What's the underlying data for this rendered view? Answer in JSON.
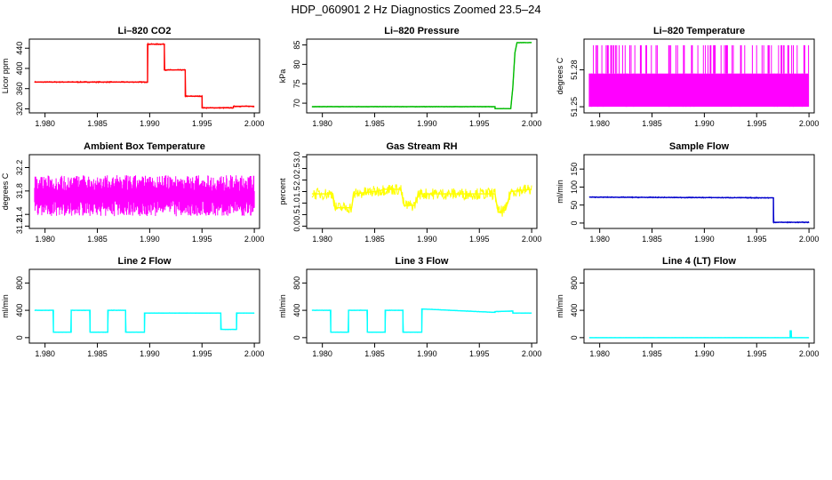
{
  "figure_title": "HDP_060901  2 Hz Diagnostics Zoomed 23.5–24",
  "chart_data": [
    {
      "type": "line",
      "title": "Li–820 CO2",
      "ylabel": "Licor ppm",
      "color": "#ff0000",
      "xlim": [
        1.9785,
        2.0005
      ],
      "ylim": [
        312,
        458
      ],
      "xticks": [
        "1.980",
        "1.985",
        "1.990",
        "1.995",
        "2.000"
      ],
      "yticks": [
        {
          "value": 320,
          "label": "320"
        },
        {
          "value": 360,
          "label": "360"
        },
        {
          "value": 400,
          "label": "400"
        },
        {
          "value": 440,
          "label": "440"
        }
      ],
      "noise": 1.2,
      "series": [
        {
          "x": [
            1.979,
            1.9898,
            1.9898,
            1.9914,
            1.9914,
            1.9934,
            1.9934,
            1.995,
            1.995,
            1.998,
            1.998,
            2.0
          ],
          "values": [
            373,
            373,
            448,
            448,
            397,
            397,
            345,
            345,
            322,
            322,
            325,
            325
          ]
        }
      ]
    },
    {
      "type": "line",
      "title": "Li–820 Pressure",
      "ylabel": "kPa",
      "color": "#00bb00",
      "xlim": [
        1.9785,
        2.0005
      ],
      "ylim": [
        67.5,
        86.5
      ],
      "xticks": [
        "1.980",
        "1.985",
        "1.990",
        "1.995",
        "2.000"
      ],
      "yticks": [
        {
          "value": 70,
          "label": "70"
        },
        {
          "value": 75,
          "label": "75"
        },
        {
          "value": 80,
          "label": "80"
        },
        {
          "value": 85,
          "label": "85"
        }
      ],
      "noise": 0.08,
      "series": [
        {
          "x": [
            1.979,
            1.9965,
            1.9965,
            1.998,
            1.9982,
            1.9984,
            1.9986,
            2.0
          ],
          "values": [
            69.1,
            69.1,
            68.6,
            68.6,
            74,
            83,
            85.6,
            85.6
          ]
        }
      ]
    },
    {
      "type": "noise",
      "title": "Li–820 Temperature",
      "ylabel": "degrees C",
      "color": "#ff00ff",
      "xlim": [
        1.9785,
        2.0005
      ],
      "ylim": [
        51.245,
        51.305
      ],
      "xticks": [
        "1.980",
        "1.985",
        "1.990",
        "1.995",
        "2.000"
      ],
      "yticks": [
        {
          "value": 51.25,
          "label": "51.25"
        },
        {
          "value": 51.28,
          "label": "51.28"
        }
      ],
      "series": [
        {
          "x": [
            1.979,
            2.0
          ],
          "base": 51.25,
          "level": 51.277,
          "spikes": 51.3
        }
      ]
    },
    {
      "type": "noise",
      "title": "Ambient Box Temperature",
      "ylabel": "degrees C",
      "color": "#ff00ff",
      "xlim": [
        1.9785,
        2.0005
      ],
      "ylim": [
        31.16,
        32.42
      ],
      "xticks": [
        "1.980",
        "1.985",
        "1.990",
        "1.995",
        "2.000"
      ],
      "yticks": [
        {
          "value": 31.2,
          "label": "31.2"
        },
        {
          "value": 31.4,
          "label": "31.4"
        },
        {
          "value": 31.8,
          "label": "31.8"
        },
        {
          "value": 32.2,
          "label": "32.2"
        }
      ],
      "series": [
        {
          "x": [
            1.979,
            2.0
          ],
          "mean": 31.72,
          "spread": 0.35
        }
      ]
    },
    {
      "type": "line",
      "title": "Gas Stream RH",
      "ylabel": "percent",
      "color": "#ffff00",
      "xlim": [
        1.9785,
        2.0005
      ],
      "ylim": [
        -0.1,
        3.1
      ],
      "xticks": [
        "1.980",
        "1.985",
        "1.990",
        "1.995",
        "2.000"
      ],
      "yticks": [
        {
          "value": 0.0,
          "label": "0.0"
        },
        {
          "value": 0.5,
          "label": "0.5"
        },
        {
          "value": 1.0,
          "label": "1.0"
        },
        {
          "value": 1.5,
          "label": "1.5"
        },
        {
          "value": 2.0,
          "label": "2.0"
        },
        {
          "value": 2.5,
          "label": "2.5"
        },
        {
          "value": 3.0,
          "label": "3.0"
        }
      ],
      "noise": 0.25,
      "series": [
        {
          "x": [
            1.979,
            1.981,
            1.9812,
            1.9828,
            1.983,
            1.985,
            1.986,
            1.9875,
            1.9878,
            1.9888,
            1.9892,
            1.9965,
            1.9968,
            1.9975,
            1.998,
            2.0
          ],
          "values": [
            1.4,
            1.4,
            0.8,
            0.8,
            1.4,
            1.5,
            1.6,
            1.6,
            0.9,
            0.9,
            1.4,
            1.4,
            0.6,
            0.7,
            1.5,
            1.6
          ]
        }
      ]
    },
    {
      "type": "line",
      "title": "Sample Flow",
      "ylabel": "ml/min",
      "color": "#0000cc",
      "xlim": [
        1.9785,
        2.0005
      ],
      "ylim": [
        -15,
        190
      ],
      "xticks": [
        "1.980",
        "1.985",
        "1.990",
        "1.995",
        "2.000"
      ],
      "yticks": [
        {
          "value": 0,
          "label": "0"
        },
        {
          "value": 50,
          "label": "50"
        },
        {
          "value": 100,
          "label": "100"
        },
        {
          "value": 150,
          "label": "150"
        }
      ],
      "noise": 1.5,
      "series": [
        {
          "x": [
            1.979,
            1.9966,
            1.9966,
            2.0
          ],
          "values": [
            72,
            70,
            2,
            2
          ]
        }
      ]
    },
    {
      "type": "line",
      "title": "Line 2 Flow",
      "ylabel": "ml/min",
      "color": "#00ffff",
      "xlim": [
        1.9785,
        2.0005
      ],
      "ylim": [
        -80,
        1000
      ],
      "xticks": [
        "1.980",
        "1.985",
        "1.990",
        "1.995",
        "2.000"
      ],
      "yticks": [
        {
          "value": 0,
          "label": "0"
        },
        {
          "value": 400,
          "label": "400"
        },
        {
          "value": 800,
          "label": "800"
        }
      ],
      "noise": 4,
      "series": [
        {
          "x": [
            1.979,
            1.9808,
            1.9808,
            1.9825,
            1.9825,
            1.9843,
            1.9843,
            1.986,
            1.986,
            1.9877,
            1.9877,
            1.9895,
            1.9895,
            1.9968,
            1.9968,
            1.9983,
            1.9983,
            2.0
          ],
          "values": [
            400,
            400,
            80,
            80,
            400,
            400,
            80,
            80,
            400,
            400,
            80,
            80,
            360,
            360,
            120,
            120,
            360,
            360
          ]
        }
      ]
    },
    {
      "type": "line",
      "title": "Line 3 Flow",
      "ylabel": "ml/min",
      "color": "#00ffff",
      "xlim": [
        1.9785,
        2.0005
      ],
      "ylim": [
        -80,
        1000
      ],
      "xticks": [
        "1.980",
        "1.985",
        "1.990",
        "1.995",
        "2.000"
      ],
      "yticks": [
        {
          "value": 0,
          "label": "0"
        },
        {
          "value": 400,
          "label": "400"
        },
        {
          "value": 800,
          "label": "800"
        }
      ],
      "noise": 4,
      "series": [
        {
          "x": [
            1.979,
            1.9808,
            1.9808,
            1.9825,
            1.9825,
            1.9843,
            1.9843,
            1.986,
            1.986,
            1.9877,
            1.9877,
            1.9895,
            1.9895,
            1.9965,
            1.9965,
            1.9982,
            1.9982,
            2.0
          ],
          "values": [
            400,
            400,
            80,
            80,
            400,
            400,
            80,
            80,
            400,
            400,
            80,
            80,
            420,
            370,
            380,
            390,
            360,
            360
          ]
        }
      ]
    },
    {
      "type": "line",
      "title": "Line 4 (LT) Flow",
      "ylabel": "ml/min",
      "color": "#00ffff",
      "xlim": [
        1.9785,
        2.0005
      ],
      "ylim": [
        -80,
        1000
      ],
      "xticks": [
        "1.980",
        "1.985",
        "1.990",
        "1.995",
        "2.000"
      ],
      "yticks": [
        {
          "value": 0,
          "label": "0"
        },
        {
          "value": 400,
          "label": "400"
        },
        {
          "value": 800,
          "label": "800"
        }
      ],
      "noise": 1,
      "series": [
        {
          "x": [
            1.979,
            1.9982,
            1.9982,
            1.9983,
            1.9983,
            2.0
          ],
          "values": [
            0,
            0,
            100,
            100,
            0,
            0
          ]
        }
      ]
    }
  ]
}
